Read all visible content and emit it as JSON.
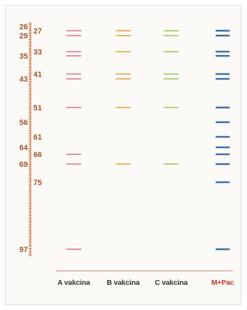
{
  "colors": {
    "ruler": "#b5541c",
    "scale_text": "#a0522d",
    "baseline": "#d4a097",
    "lane_a": "#e58fa4",
    "lane_b": "#f2b067",
    "lane_c": "#a7d777",
    "lane_m": "#3a6ea8",
    "lane_m_label": "#c0392b"
  },
  "left_scale": [
    "26",
    "29",
    "35",
    "43",
    "56",
    "64",
    "69",
    "97"
  ],
  "right_scale": [
    "27",
    "33",
    "41",
    "51",
    "61",
    "66",
    "75"
  ],
  "lanes": [
    {
      "label": "A vakcina",
      "color_key": "lane_a",
      "bands": [
        27,
        29,
        33,
        35,
        41,
        43,
        51,
        66,
        69,
        97
      ]
    },
    {
      "label": "B vakcina",
      "color_key": "lane_b",
      "bands": [
        27,
        29,
        33,
        41,
        43,
        51,
        69
      ]
    },
    {
      "label": "C vakcina",
      "color_key": "lane_c",
      "bands": [
        27,
        29,
        33,
        41,
        43,
        51,
        69
      ]
    },
    {
      "label": "M+Pac",
      "color_key": "lane_m",
      "bands": [
        27,
        29,
        33,
        35,
        41,
        43,
        51,
        56,
        61,
        64,
        66,
        69,
        75,
        97
      ]
    }
  ]
}
